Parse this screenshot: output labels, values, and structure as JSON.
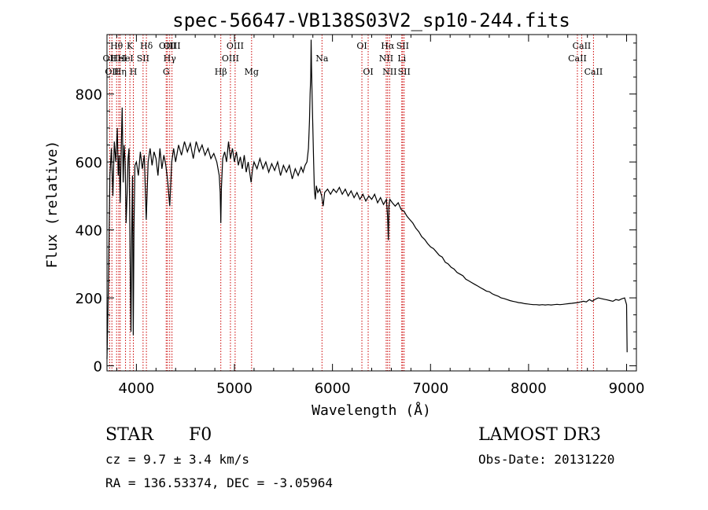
{
  "chart_data": {
    "type": "line",
    "title": "spec-56647-VB138S03V2_sp10-244.fits",
    "xlabel": "Wavelength (Å)",
    "ylabel": "Flux (relative)",
    "xlim": [
      3700,
      9100
    ],
    "ylim": [
      -15,
      975
    ],
    "x_ticks": [
      4000,
      5000,
      6000,
      7000,
      8000,
      9000
    ],
    "y_ticks": [
      0,
      200,
      400,
      600,
      800
    ],
    "x_tick_labels": [
      "4000",
      "5000",
      "6000",
      "7000",
      "8000",
      "9000"
    ],
    "y_tick_labels": [
      "0",
      "200",
      "400",
      "600",
      "800"
    ],
    "series": [
      {
        "name": "spectrum",
        "color": "#000000",
        "points": [
          [
            3700,
            20
          ],
          [
            3715,
            250
          ],
          [
            3730,
            560
          ],
          [
            3745,
            640
          ],
          [
            3760,
            500
          ],
          [
            3775,
            660
          ],
          [
            3790,
            600
          ],
          [
            3805,
            700
          ],
          [
            3815,
            560
          ],
          [
            3825,
            620
          ],
          [
            3835,
            480
          ],
          [
            3845,
            640
          ],
          [
            3855,
            760
          ],
          [
            3865,
            540
          ],
          [
            3875,
            650
          ],
          [
            3885,
            600
          ],
          [
            3895,
            420
          ],
          [
            3905,
            500
          ],
          [
            3915,
            610
          ],
          [
            3925,
            640
          ],
          [
            3933,
            420
          ],
          [
            3940,
            200
          ],
          [
            3945,
            100
          ],
          [
            3952,
            380
          ],
          [
            3960,
            560
          ],
          [
            3968,
            90
          ],
          [
            3975,
            400
          ],
          [
            3985,
            590
          ],
          [
            4000,
            600
          ],
          [
            4020,
            560
          ],
          [
            4040,
            630
          ],
          [
            4060,
            580
          ],
          [
            4080,
            620
          ],
          [
            4100,
            430
          ],
          [
            4120,
            600
          ],
          [
            4140,
            640
          ],
          [
            4160,
            590
          ],
          [
            4180,
            630
          ],
          [
            4200,
            610
          ],
          [
            4220,
            560
          ],
          [
            4240,
            640
          ],
          [
            4260,
            580
          ],
          [
            4280,
            620
          ],
          [
            4300,
            590
          ],
          [
            4320,
            540
          ],
          [
            4340,
            470
          ],
          [
            4360,
            600
          ],
          [
            4380,
            640
          ],
          [
            4400,
            600
          ],
          [
            4430,
            650
          ],
          [
            4460,
            620
          ],
          [
            4490,
            660
          ],
          [
            4520,
            630
          ],
          [
            4550,
            655
          ],
          [
            4580,
            610
          ],
          [
            4610,
            660
          ],
          [
            4640,
            630
          ],
          [
            4670,
            650
          ],
          [
            4700,
            620
          ],
          [
            4730,
            640
          ],
          [
            4760,
            610
          ],
          [
            4790,
            625
          ],
          [
            4820,
            600
          ],
          [
            4845,
            560
          ],
          [
            4855,
            510
          ],
          [
            4861,
            420
          ],
          [
            4867,
            520
          ],
          [
            4880,
            610
          ],
          [
            4900,
            630
          ],
          [
            4920,
            600
          ],
          [
            4940,
            660
          ],
          [
            4960,
            610
          ],
          [
            4980,
            640
          ],
          [
            5000,
            600
          ],
          [
            5020,
            630
          ],
          [
            5040,
            590
          ],
          [
            5060,
            615
          ],
          [
            5080,
            580
          ],
          [
            5100,
            620
          ],
          [
            5120,
            570
          ],
          [
            5140,
            600
          ],
          [
            5170,
            540
          ],
          [
            5185,
            580
          ],
          [
            5200,
            600
          ],
          [
            5230,
            580
          ],
          [
            5260,
            610
          ],
          [
            5290,
            580
          ],
          [
            5320,
            600
          ],
          [
            5350,
            570
          ],
          [
            5380,
            595
          ],
          [
            5410,
            575
          ],
          [
            5440,
            600
          ],
          [
            5470,
            560
          ],
          [
            5500,
            590
          ],
          [
            5530,
            570
          ],
          [
            5560,
            590
          ],
          [
            5590,
            550
          ],
          [
            5620,
            580
          ],
          [
            5650,
            560
          ],
          [
            5680,
            585
          ],
          [
            5700,
            570
          ],
          [
            5720,
            590
          ],
          [
            5740,
            600
          ],
          [
            5755,
            640
          ],
          [
            5765,
            720
          ],
          [
            5772,
            800
          ],
          [
            5778,
            850
          ],
          [
            5782,
            960
          ],
          [
            5786,
            880
          ],
          [
            5792,
            800
          ],
          [
            5800,
            700
          ],
          [
            5808,
            600
          ],
          [
            5815,
            520
          ],
          [
            5825,
            490
          ],
          [
            5835,
            530
          ],
          [
            5850,
            510
          ],
          [
            5870,
            520
          ],
          [
            5890,
            500
          ],
          [
            5905,
            470
          ],
          [
            5920,
            510
          ],
          [
            5950,
            520
          ],
          [
            5980,
            505
          ],
          [
            6010,
            520
          ],
          [
            6040,
            510
          ],
          [
            6070,
            525
          ],
          [
            6100,
            505
          ],
          [
            6130,
            520
          ],
          [
            6160,
            500
          ],
          [
            6190,
            515
          ],
          [
            6220,
            495
          ],
          [
            6250,
            510
          ],
          [
            6280,
            490
          ],
          [
            6310,
            505
          ],
          [
            6340,
            485
          ],
          [
            6370,
            500
          ],
          [
            6400,
            490
          ],
          [
            6430,
            505
          ],
          [
            6460,
            480
          ],
          [
            6490,
            495
          ],
          [
            6520,
            475
          ],
          [
            6550,
            490
          ],
          [
            6562,
            440
          ],
          [
            6570,
            370
          ],
          [
            6576,
            470
          ],
          [
            6585,
            490
          ],
          [
            6610,
            480
          ],
          [
            6640,
            470
          ],
          [
            6670,
            480
          ],
          [
            6700,
            460
          ],
          [
            6730,
            455
          ],
          [
            6760,
            440
          ],
          [
            6790,
            430
          ],
          [
            6820,
            420
          ],
          [
            6850,
            405
          ],
          [
            6880,
            395
          ],
          [
            6910,
            380
          ],
          [
            6940,
            372
          ],
          [
            6970,
            360
          ],
          [
            7000,
            350
          ],
          [
            7030,
            345
          ],
          [
            7060,
            335
          ],
          [
            7090,
            325
          ],
          [
            7120,
            320
          ],
          [
            7150,
            305
          ],
          [
            7180,
            300
          ],
          [
            7210,
            290
          ],
          [
            7240,
            285
          ],
          [
            7270,
            275
          ],
          [
            7300,
            270
          ],
          [
            7330,
            265
          ],
          [
            7360,
            255
          ],
          [
            7390,
            250
          ],
          [
            7420,
            245
          ],
          [
            7450,
            240
          ],
          [
            7480,
            235
          ],
          [
            7510,
            230
          ],
          [
            7540,
            225
          ],
          [
            7570,
            220
          ],
          [
            7600,
            218
          ],
          [
            7630,
            212
          ],
          [
            7660,
            208
          ],
          [
            7690,
            205
          ],
          [
            7720,
            200
          ],
          [
            7750,
            198
          ],
          [
            7780,
            195
          ],
          [
            7810,
            192
          ],
          [
            7840,
            190
          ],
          [
            7870,
            188
          ],
          [
            7900,
            186
          ],
          [
            7930,
            185
          ],
          [
            7960,
            183
          ],
          [
            7990,
            182
          ],
          [
            8020,
            181
          ],
          [
            8050,
            180
          ],
          [
            8080,
            180
          ],
          [
            8110,
            179
          ],
          [
            8140,
            180
          ],
          [
            8170,
            179
          ],
          [
            8200,
            180
          ],
          [
            8230,
            179
          ],
          [
            8260,
            180
          ],
          [
            8290,
            181
          ],
          [
            8320,
            180
          ],
          [
            8350,
            181
          ],
          [
            8380,
            182
          ],
          [
            8410,
            183
          ],
          [
            8440,
            184
          ],
          [
            8470,
            185
          ],
          [
            8500,
            186
          ],
          [
            8530,
            188
          ],
          [
            8560,
            190
          ],
          [
            8590,
            188
          ],
          [
            8620,
            195
          ],
          [
            8650,
            190
          ],
          [
            8680,
            196
          ],
          [
            8710,
            200
          ],
          [
            8740,
            198
          ],
          [
            8770,
            196
          ],
          [
            8800,
            194
          ],
          [
            8830,
            192
          ],
          [
            8860,
            190
          ],
          [
            8890,
            195
          ],
          [
            8920,
            193
          ],
          [
            8950,
            197
          ],
          [
            8980,
            200
          ],
          [
            9000,
            180
          ],
          [
            9005,
            40
          ]
        ]
      }
    ],
    "lines": [
      {
        "wave": 3727,
        "labels": [
          "OII"
        ],
        "tier": [
          2
        ]
      },
      {
        "wave": 3750,
        "labels": [
          "OII"
        ],
        "tier": [
          3
        ]
      },
      {
        "wave": 3798,
        "labels": [
          "Hθ"
        ],
        "tier": [
          1
        ]
      },
      {
        "wave": 3820,
        "labels": [
          "HeI"
        ],
        "tier": [
          2
        ]
      },
      {
        "wave": 3835,
        "labels": [
          "Hη"
        ],
        "tier": [
          3
        ]
      },
      {
        "wave": 3889,
        "labels": [
          "HeI"
        ],
        "tier": [
          2
        ]
      },
      {
        "wave": 3934,
        "labels": [
          "K"
        ],
        "tier": [
          1
        ]
      },
      {
        "wave": 3969,
        "labels": [
          "H"
        ],
        "tier": [
          3
        ]
      },
      {
        "wave": 4068,
        "labels": [
          "SII"
        ],
        "tier": [
          2
        ]
      },
      {
        "wave": 4102,
        "labels": [
          "Hδ"
        ],
        "tier": [
          1
        ]
      },
      {
        "wave": 4304,
        "labels": [
          "G"
        ],
        "tier": [
          3
        ]
      },
      {
        "wave": 4317,
        "labels": [
          "OIII"
        ],
        "tier": [
          1
        ]
      },
      {
        "wave": 4340,
        "labels": [
          "Hγ"
        ],
        "tier": [
          2
        ]
      },
      {
        "wave": 4363,
        "labels": [
          "OIII"
        ],
        "tier": [
          1
        ]
      },
      {
        "wave": 4861,
        "labels": [
          "Hβ"
        ],
        "tier": [
          3
        ]
      },
      {
        "wave": 4959,
        "labels": [
          "OIII"
        ],
        "tier": [
          2
        ]
      },
      {
        "wave": 5007,
        "labels": [
          "OIII"
        ],
        "tier": [
          1
        ]
      },
      {
        "wave": 5175,
        "labels": [
          "Mg"
        ],
        "tier": [
          3
        ]
      },
      {
        "wave": 5893,
        "labels": [
          "Na"
        ],
        "tier": [
          2
        ]
      },
      {
        "wave": 6300,
        "labels": [
          "OI"
        ],
        "tier": [
          1
        ]
      },
      {
        "wave": 6364,
        "labels": [
          "OI"
        ],
        "tier": [
          3
        ]
      },
      {
        "wave": 6548,
        "labels": [
          "NII"
        ],
        "tier": [
          2
        ]
      },
      {
        "wave": 6563,
        "labels": [
          "Hα"
        ],
        "tier": [
          1
        ]
      },
      {
        "wave": 6583,
        "labels": [
          "NII"
        ],
        "tier": [
          3
        ]
      },
      {
        "wave": 6707,
        "labels": [
          "Li"
        ],
        "tier": [
          2
        ]
      },
      {
        "wave": 6716,
        "labels": [
          "SII"
        ],
        "tier": [
          1
        ]
      },
      {
        "wave": 6731,
        "labels": [
          "SII"
        ],
        "tier": [
          3
        ]
      },
      {
        "wave": 8498,
        "labels": [
          "CaII"
        ],
        "tier": [
          2
        ]
      },
      {
        "wave": 8542,
        "labels": [
          "CaII"
        ],
        "tier": [
          1
        ]
      },
      {
        "wave": 8662,
        "labels": [
          "CaII"
        ],
        "tier": [
          3
        ]
      }
    ],
    "line_color": "#cc0000",
    "grid": false,
    "legend": "none"
  },
  "info": {
    "class_label": "STAR",
    "subclass": "F0",
    "survey": "LAMOST DR3",
    "cz": "cz = 9.7 ± 3.4 km/s",
    "obs_date": "Obs-Date: 20131220",
    "coords": "RA = 136.53374, DEC =  -3.05964"
  }
}
